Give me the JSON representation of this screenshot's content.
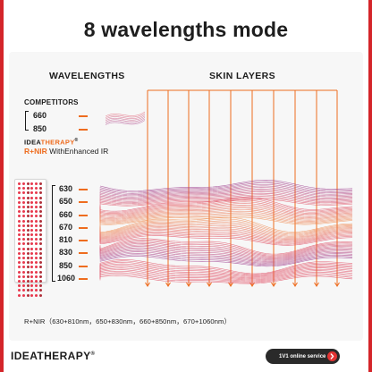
{
  "headline": "8 wavelengths mode",
  "columns": {
    "wavelengths": "WAVELENGTHS",
    "skin_layers": "SKIN LAYERS"
  },
  "competitors": {
    "title": "COMPETITORS",
    "wavelengths": [
      "660",
      "850"
    ]
  },
  "brand": {
    "name_part1": "IDEA",
    "name_part2": "THERAPY",
    "trademark": "®",
    "mode_emph": "R+NIR",
    "mode_rest": " WithEnhanced IR"
  },
  "ideatherapy_wavelengths": [
    "630",
    "650",
    "660",
    "670",
    "810",
    "830",
    "850",
    "1060"
  ],
  "combinations": "R+NIR（630+810nm，650+830nm，660+850nm，670+1060nm）",
  "footer": {
    "logo": "IDEATHERAPY",
    "trademark": "®",
    "service": "1V1 online service"
  },
  "colors": {
    "frame": "#d4252a",
    "accent": "#ee6c1f",
    "wave_red": "#e0495f",
    "wave_purple": "#9b3a8c",
    "wave_orange": "#f0884a"
  },
  "icons": {
    "service_arrow": "chevron-right-icon",
    "device": "led-panel-device"
  }
}
